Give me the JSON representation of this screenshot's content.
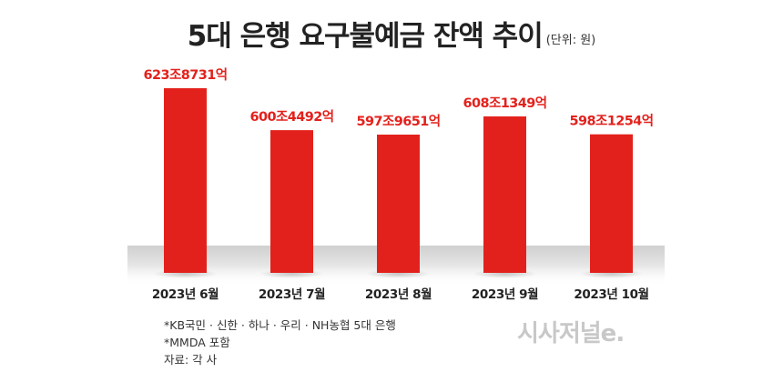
{
  "header": {
    "title": "5대 은행 요구불예금 잔액 추이",
    "unit": "(단위: 원)"
  },
  "chart_data": {
    "type": "bar",
    "title": "5대 은행 요구불예금 잔액 추이",
    "unit": "(단위: 원)",
    "categories": [
      "2023년 6월",
      "2023년 7월",
      "2023년 8월",
      "2023년 9월",
      "2023년 10월"
    ],
    "values": [
      623.8731,
      600.4492,
      597.9651,
      608.1349,
      598.1254
    ],
    "value_labels": [
      "623조8731억",
      "600조4492억",
      "597조9651억",
      "608조1349억",
      "598조1254억"
    ],
    "bar_color": "#e3211c",
    "label_color": "#e3211c",
    "grid": false,
    "legend": "none"
  },
  "notes": {
    "line1": "*KB국민 · 신한 · 하나 · 우리 · NH농협 5대 은행",
    "line2": "*MMDA 포함",
    "line3": "자료: 각 사"
  },
  "logo": {
    "text": "시사저널e."
  }
}
